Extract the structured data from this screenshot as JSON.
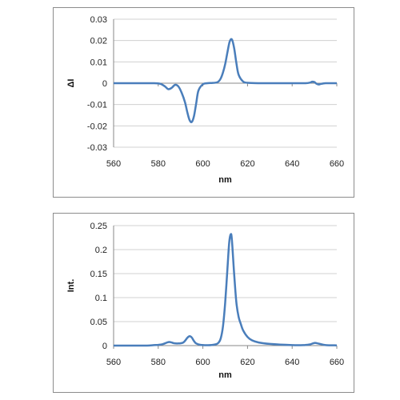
{
  "chart_data": [
    {
      "type": "line",
      "title": "",
      "xlabel": "nm",
      "ylabel": "ΔI",
      "xlim": [
        560,
        660
      ],
      "ylim": [
        -0.03,
        0.03
      ],
      "x_ticks": [
        "560",
        "580",
        "600",
        "620",
        "640",
        "660"
      ],
      "y_ticks": [
        "0.03",
        "0.02",
        "0.01",
        "0",
        "-0.01",
        "-0.02",
        "-0.03"
      ],
      "grid": "horizontal",
      "line_color": "#4a7ebb",
      "series": [
        {
          "x": [
            560,
            570,
            578,
            581,
            583,
            584.5,
            586,
            587.5,
            589,
            590.5,
            592,
            593,
            594,
            595,
            596,
            597,
            598,
            600,
            602,
            604,
            606,
            607,
            608,
            609,
            610,
            611,
            612,
            613,
            614,
            615,
            616,
            618,
            620,
            625,
            630,
            640,
            646,
            648,
            649,
            650,
            651,
            652,
            653,
            655,
            660
          ],
          "y": [
            0,
            0,
            0,
            -0.0003,
            -0.0015,
            -0.0028,
            -0.0022,
            -0.0008,
            -0.0015,
            -0.0045,
            -0.009,
            -0.0135,
            -0.0172,
            -0.0182,
            -0.0155,
            -0.0095,
            -0.0035,
            -0.0005,
            0,
            0.0001,
            0.0003,
            0.0008,
            0.0022,
            0.005,
            0.009,
            0.0145,
            0.0195,
            0.0205,
            0.0165,
            0.0095,
            0.004,
            0.0008,
            0.0002,
            0,
            0,
            0,
            0,
            0.0003,
            0.0007,
            0.0005,
            -0.0003,
            -0.0006,
            -0.0003,
            0,
            0
          ]
        }
      ]
    },
    {
      "type": "line",
      "title": "",
      "xlabel": "nm",
      "ylabel": "Int.",
      "xlim": [
        560,
        660
      ],
      "ylim": [
        0,
        0.25
      ],
      "x_ticks": [
        "560",
        "580",
        "600",
        "620",
        "640",
        "660"
      ],
      "y_ticks": [
        "0.25",
        "0.2",
        "0.15",
        "0.1",
        "0.05",
        "0"
      ],
      "grid": "horizontal",
      "line_color": "#4a7ebb",
      "series": [
        {
          "x": [
            560,
            570,
            575,
            578,
            580,
            582,
            584,
            585,
            586,
            587,
            589,
            591,
            592,
            593,
            594,
            595,
            596,
            597,
            599,
            602,
            604,
            606,
            607,
            608,
            609,
            610,
            611,
            611.8,
            612.5,
            613,
            614,
            615,
            616,
            617,
            618,
            620,
            622,
            625,
            630,
            640,
            645,
            648,
            650,
            652,
            655,
            660
          ],
          "y": [
            0,
            0,
            0,
            0.001,
            0.0015,
            0.003,
            0.0065,
            0.0075,
            0.0065,
            0.005,
            0.0045,
            0.006,
            0.01,
            0.016,
            0.0195,
            0.017,
            0.0095,
            0.0045,
            0.0015,
            0.0008,
            0.0012,
            0.003,
            0.006,
            0.015,
            0.04,
            0.09,
            0.16,
            0.215,
            0.232,
            0.22,
            0.15,
            0.09,
            0.06,
            0.045,
            0.032,
            0.018,
            0.011,
            0.0065,
            0.0035,
            0.001,
            0.001,
            0.0025,
            0.0055,
            0.004,
            0.001,
            0.0005
          ]
        }
      ]
    }
  ]
}
